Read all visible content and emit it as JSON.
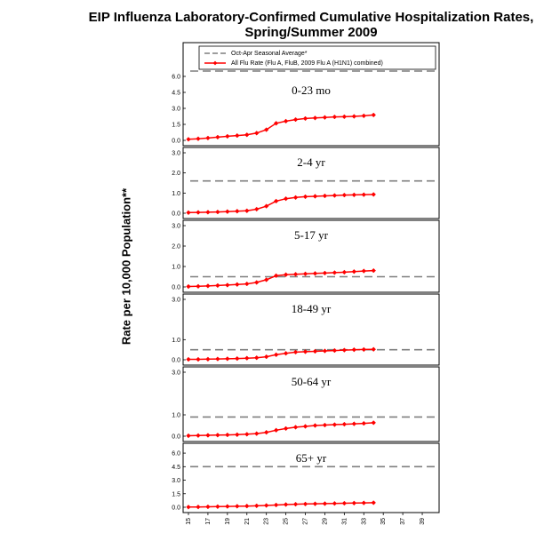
{
  "chart_data": {
    "type": "line",
    "title": "EIP Influenza Laboratory-Confirmed Cumulative Hospitalization Rates, Spring/Summer 2009",
    "ylabel": "Rate per 10,000 Population**",
    "xlabel": "",
    "x_ticks": [
      "15",
      "17",
      "19",
      "21",
      "23",
      "25",
      "27",
      "29",
      "31",
      "33",
      "35",
      "37",
      "39"
    ],
    "xlim": [
      15,
      40
    ],
    "legend": {
      "position": "top",
      "entries": [
        {
          "name": "Oct-Apr Seasonal Average*",
          "style": "dashed",
          "color": "#7f7f7f"
        },
        {
          "name": "All Flu Rate (Flu A, FluB, 2009 Flu A (H1N1) combined)",
          "style": "line-marker",
          "color": "#ff0000"
        }
      ]
    },
    "panels": [
      {
        "label": "0-23 mo",
        "ylim": [
          0,
          6.5
        ],
        "y_ticks": [
          "0.0",
          "1.5",
          "3.0",
          "4.5",
          "6.0"
        ],
        "seasonal_average": 6.5,
        "x": [
          15,
          16,
          17,
          18,
          19,
          20,
          21,
          22,
          23,
          24,
          25,
          26,
          27,
          28,
          29,
          30,
          31,
          32,
          33,
          34
        ],
        "values": [
          0.1,
          0.15,
          0.22,
          0.3,
          0.38,
          0.45,
          0.52,
          0.68,
          1.0,
          1.6,
          1.8,
          1.95,
          2.05,
          2.1,
          2.15,
          2.2,
          2.22,
          2.25,
          2.3,
          2.38
        ]
      },
      {
        "label": "2-4 yr",
        "ylim": [
          0,
          3.0
        ],
        "y_ticks": [
          "0.0",
          "1.0",
          "2.0",
          "3.0"
        ],
        "seasonal_average": 1.6,
        "x": [
          15,
          16,
          17,
          18,
          19,
          20,
          21,
          22,
          23,
          24,
          25,
          26,
          27,
          28,
          29,
          30,
          31,
          32,
          33,
          34
        ],
        "values": [
          0.03,
          0.04,
          0.05,
          0.06,
          0.08,
          0.1,
          0.12,
          0.2,
          0.35,
          0.6,
          0.72,
          0.78,
          0.82,
          0.84,
          0.86,
          0.88,
          0.9,
          0.91,
          0.92,
          0.93
        ]
      },
      {
        "label": "5-17 yr",
        "ylim": [
          0,
          3.0
        ],
        "y_ticks": [
          "0.0",
          "1.0",
          "2.0",
          "3.0"
        ],
        "seasonal_average": 0.5,
        "x": [
          15,
          16,
          17,
          18,
          19,
          20,
          21,
          22,
          23,
          24,
          25,
          26,
          27,
          28,
          29,
          30,
          31,
          32,
          33,
          34
        ],
        "values": [
          0.02,
          0.03,
          0.05,
          0.07,
          0.09,
          0.12,
          0.15,
          0.22,
          0.35,
          0.55,
          0.6,
          0.62,
          0.64,
          0.66,
          0.68,
          0.7,
          0.72,
          0.75,
          0.78,
          0.8
        ]
      },
      {
        "label": "18-49 yr",
        "ylim": [
          0,
          3.0
        ],
        "y_ticks": [
          "0.0",
          "1.0",
          "3.0"
        ],
        "seasonal_average": 0.5,
        "x": [
          15,
          16,
          17,
          18,
          19,
          20,
          21,
          22,
          23,
          24,
          25,
          26,
          27,
          28,
          29,
          30,
          31,
          32,
          33,
          34
        ],
        "values": [
          0.02,
          0.02,
          0.03,
          0.04,
          0.05,
          0.06,
          0.08,
          0.1,
          0.15,
          0.25,
          0.32,
          0.38,
          0.4,
          0.42,
          0.44,
          0.46,
          0.48,
          0.5,
          0.51,
          0.52
        ]
      },
      {
        "label": "50-64 yr",
        "ylim": [
          0,
          3.0
        ],
        "y_ticks": [
          "0.0",
          "1.0",
          "3.0"
        ],
        "seasonal_average": 0.9,
        "x": [
          15,
          16,
          17,
          18,
          19,
          20,
          21,
          22,
          23,
          24,
          25,
          26,
          27,
          28,
          29,
          30,
          31,
          32,
          33,
          34
        ],
        "values": [
          0.02,
          0.03,
          0.04,
          0.05,
          0.06,
          0.07,
          0.09,
          0.12,
          0.18,
          0.28,
          0.36,
          0.42,
          0.46,
          0.5,
          0.52,
          0.54,
          0.56,
          0.58,
          0.6,
          0.63
        ]
      },
      {
        "label": "65+ yr",
        "ylim": [
          0,
          6.5
        ],
        "y_ticks": [
          "0.0",
          "1.5",
          "3.0",
          "4.5",
          "6.0"
        ],
        "seasonal_average": 4.5,
        "x": [
          15,
          16,
          17,
          18,
          19,
          20,
          21,
          22,
          23,
          24,
          25,
          26,
          27,
          28,
          29,
          30,
          31,
          32,
          33,
          34
        ],
        "values": [
          0.02,
          0.03,
          0.05,
          0.07,
          0.09,
          0.11,
          0.13,
          0.16,
          0.2,
          0.25,
          0.3,
          0.33,
          0.36,
          0.38,
          0.4,
          0.42,
          0.44,
          0.46,
          0.48,
          0.5
        ]
      }
    ]
  }
}
